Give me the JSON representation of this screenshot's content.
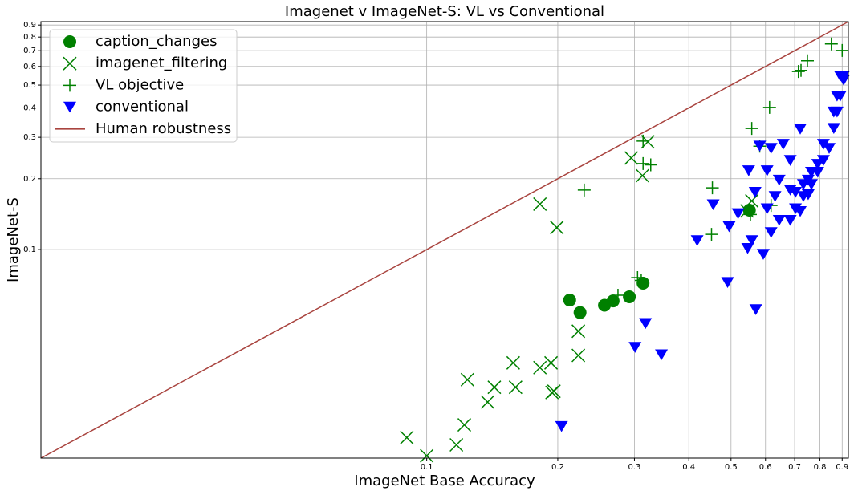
{
  "chart_data": {
    "type": "scatter",
    "title": "Imagenet v ImageNet-S: VL vs Conventional",
    "xlabel": "ImageNet Base Accuracy",
    "ylabel": "ImageNet-S",
    "xscale": "log",
    "yscale": "log",
    "grid": true,
    "legend": "upper left",
    "xlim": [
      0.013,
      0.93
    ],
    "ylim": [
      0.013,
      0.93
    ],
    "xticks": [
      0.1,
      0.2,
      0.3,
      0.4,
      0.5,
      0.6,
      0.7,
      0.8,
      0.9
    ],
    "yticks": [
      0.1,
      0.2,
      0.3,
      0.4,
      0.5,
      0.6,
      0.7,
      0.8,
      0.9
    ],
    "series": [
      {
        "name": "caption_changes",
        "color": "#008000",
        "marker": "o",
        "x": [
          0.213,
          0.225,
          0.256,
          0.268,
          0.292,
          0.314,
          0.551
        ],
        "values": [
          0.061,
          0.054,
          0.058,
          0.0605,
          0.063,
          0.072,
          0.147
        ]
      },
      {
        "name": "imagenet_filtering",
        "color": "#008000",
        "marker": "x",
        "x": [
          0.182,
          0.199,
          0.295,
          0.322,
          0.313,
          0.223,
          0.223,
          0.158,
          0.193,
          0.182,
          0.143,
          0.16,
          0.196,
          0.194,
          0.138,
          0.124,
          0.122,
          0.117,
          0.09,
          0.1,
          0.558,
          0.544
        ],
        "values": [
          0.156,
          0.124,
          0.245,
          0.287,
          0.206,
          0.045,
          0.0355,
          0.033,
          0.033,
          0.0315,
          0.026,
          0.026,
          0.025,
          0.0247,
          0.0225,
          0.028,
          0.018,
          0.0148,
          0.0159,
          0.0133,
          0.161,
          0.146
        ]
      },
      {
        "name": "VL objective",
        "color": "#008000",
        "marker": "+",
        "x": [
          0.9,
          0.85,
          0.749,
          0.724,
          0.714,
          0.613,
          0.558,
          0.453,
          0.451,
          0.23,
          0.275,
          0.305,
          0.311,
          0.314,
          0.327,
          0.314,
          0.554,
          0.582,
          0.618
        ],
        "values": [
          0.702,
          0.748,
          0.634,
          0.577,
          0.571,
          0.402,
          0.327,
          0.183,
          0.116,
          0.179,
          0.064,
          0.076,
          0.074,
          0.232,
          0.229,
          0.289,
          0.141,
          0.275,
          0.154
        ]
      },
      {
        "name": "conventional",
        "color": "#0000ff",
        "marker": "v",
        "x": [
          0.204,
          0.301,
          0.318,
          0.346,
          0.57,
          0.491,
          0.593,
          0.418,
          0.455,
          0.546,
          0.558,
          0.495,
          0.519,
          0.549,
          0.568,
          0.582,
          0.721,
          0.618,
          0.659,
          0.684,
          0.721,
          0.752,
          0.645,
          0.605,
          0.631,
          0.684,
          0.703,
          0.733,
          0.752,
          0.765,
          0.791,
          0.815,
          0.84,
          0.861,
          0.876,
          0.891,
          0.907,
          0.907,
          0.891,
          0.876,
          0.861,
          0.815,
          0.791,
          0.765,
          0.733,
          0.703,
          0.618,
          0.605,
          0.645,
          0.684
        ],
        "values": [
          0.0177,
          0.0384,
          0.0485,
          0.0357,
          0.0555,
          0.0724,
          0.0954,
          0.109,
          0.155,
          0.101,
          0.109,
          0.125,
          0.142,
          0.216,
          0.175,
          0.275,
          0.325,
          0.269,
          0.28,
          0.179,
          0.145,
          0.171,
          0.133,
          0.149,
          0.168,
          0.133,
          0.149,
          0.168,
          0.197,
          0.189,
          0.23,
          0.239,
          0.269,
          0.327,
          0.384,
          0.449,
          0.525,
          0.546,
          0.546,
          0.449,
          0.384,
          0.28,
          0.213,
          0.213,
          0.189,
          0.175,
          0.118,
          0.216,
          0.197,
          0.239
        ]
      },
      {
        "name": "Human robustness",
        "color": "#a9443f",
        "marker": "line",
        "x": [
          0.013,
          0.93
        ],
        "values": [
          0.013,
          0.93
        ]
      }
    ]
  }
}
